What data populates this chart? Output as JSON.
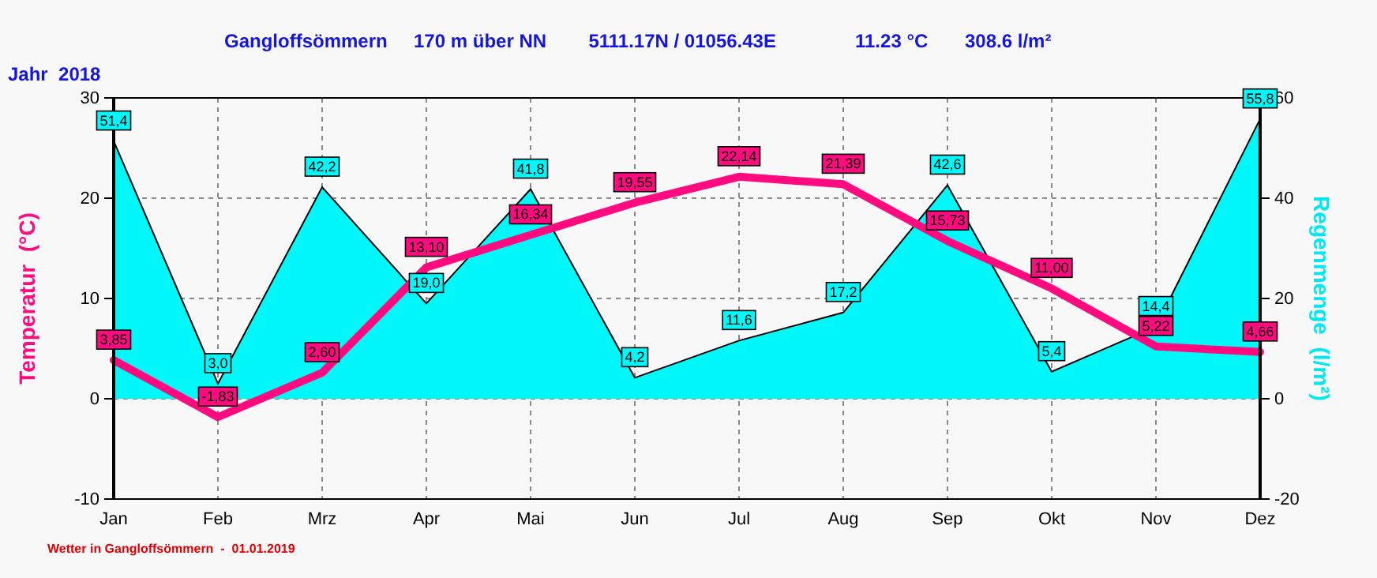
{
  "chart_data": {
    "type": "line",
    "title": "Gangloffsömmern     170 m über NN        5111.17N / 01056.43E               11.23 °C       308.6 l/m²",
    "subtitle": "Jahr  2018",
    "ylabel": "Temperatur  (°C)",
    "y2label": "Regenmenge  (l/m²)",
    "annotations": [
      "Wetter in Gangloffsömmern  -  01.01.2019"
    ],
    "categories": [
      "Jan",
      "Feb",
      "Mrz",
      "Apr",
      "Mai",
      "Jun",
      "Jul",
      "Aug",
      "Sep",
      "Okt",
      "Nov",
      "Dez"
    ],
    "ylim": [
      -10,
      30
    ],
    "yticks": [
      -10,
      0,
      10,
      20,
      30
    ],
    "y2lim": [
      -20,
      60
    ],
    "y2ticks": [
      -20,
      0,
      20,
      40,
      60
    ],
    "grid": true,
    "series": [
      {
        "type": "area",
        "axis": "y2",
        "color": "#00f8f8",
        "values": [
          51.4,
          3.0,
          42.2,
          19.0,
          41.8,
          4.2,
          11.6,
          17.2,
          42.6,
          5.4,
          14.4,
          55.8
        ],
        "value_labels": [
          "51,4",
          "3,0",
          "42,2",
          "19,0",
          "41,8",
          "4,2",
          "11,6",
          "17,2",
          "42,6",
          "5,4",
          "14,4",
          "55,8"
        ]
      },
      {
        "axis": "y",
        "color": "#ff0a7f",
        "values": [
          3.85,
          -1.83,
          2.6,
          13.1,
          16.34,
          19.55,
          22.14,
          21.39,
          15.73,
          11.0,
          5.22,
          4.66
        ],
        "value_labels": [
          "3,85",
          "-1,83",
          "2,60",
          "13,10",
          "16,34",
          "19,55",
          "22,14",
          "21,39",
          "15,73",
          "11,00",
          "5,22",
          "4,66"
        ]
      }
    ]
  }
}
